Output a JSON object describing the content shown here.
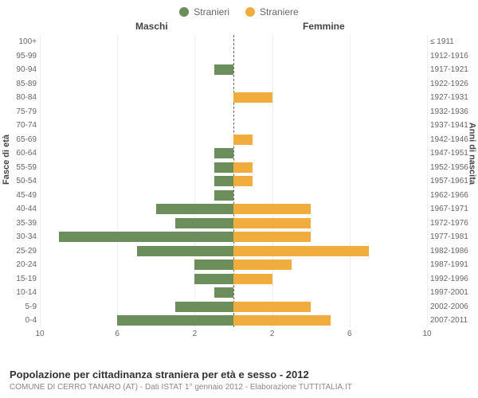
{
  "legend": {
    "male": {
      "label": "Stranieri",
      "color": "#6b8e5a"
    },
    "female": {
      "label": "Straniere",
      "color": "#f0ad3e"
    }
  },
  "headers": {
    "left": "Maschi",
    "right": "Femmine"
  },
  "axis_titles": {
    "left": "Fasce di età",
    "right": "Anni di nascita"
  },
  "age_groups": [
    "100+",
    "95-99",
    "90-94",
    "85-89",
    "80-84",
    "75-79",
    "70-74",
    "65-69",
    "60-64",
    "55-59",
    "50-54",
    "45-49",
    "40-44",
    "35-39",
    "30-34",
    "25-29",
    "20-24",
    "15-19",
    "10-14",
    "5-9",
    "0-4"
  ],
  "birth_years": [
    "≤ 1911",
    "1912-1916",
    "1917-1921",
    "1922-1926",
    "1927-1931",
    "1932-1936",
    "1937-1941",
    "1942-1946",
    "1947-1951",
    "1952-1956",
    "1957-1961",
    "1962-1966",
    "1967-1971",
    "1972-1976",
    "1977-1981",
    "1982-1986",
    "1987-1991",
    "1992-1996",
    "1997-2001",
    "2002-2006",
    "2007-2011"
  ],
  "male_values": [
    0,
    0,
    1,
    0,
    0,
    0,
    0,
    0,
    1,
    1,
    1,
    1,
    4,
    3,
    9,
    5,
    2,
    2,
    1,
    3,
    6
  ],
  "female_values": [
    0,
    0,
    0,
    0,
    2,
    0,
    0,
    1,
    0,
    1,
    1,
    0,
    4,
    4,
    4,
    7,
    3,
    2,
    0,
    4,
    5
  ],
  "x_max": 10,
  "x_ticks_left": [
    10,
    6,
    2
  ],
  "x_ticks_right": [
    2,
    6,
    10
  ],
  "colors": {
    "male_bar": "#6b8e5a",
    "female_bar": "#f0ad3e",
    "background": "#ffffff",
    "grid": "#eeeeee",
    "center_line": "#666666"
  },
  "footer": {
    "title": "Popolazione per cittadinanza straniera per età e sesso - 2012",
    "subtitle": "COMUNE DI CERRO TANARO (AT) - Dati ISTAT 1° gennaio 2012 - Elaborazione TUTTITALIA.IT"
  }
}
